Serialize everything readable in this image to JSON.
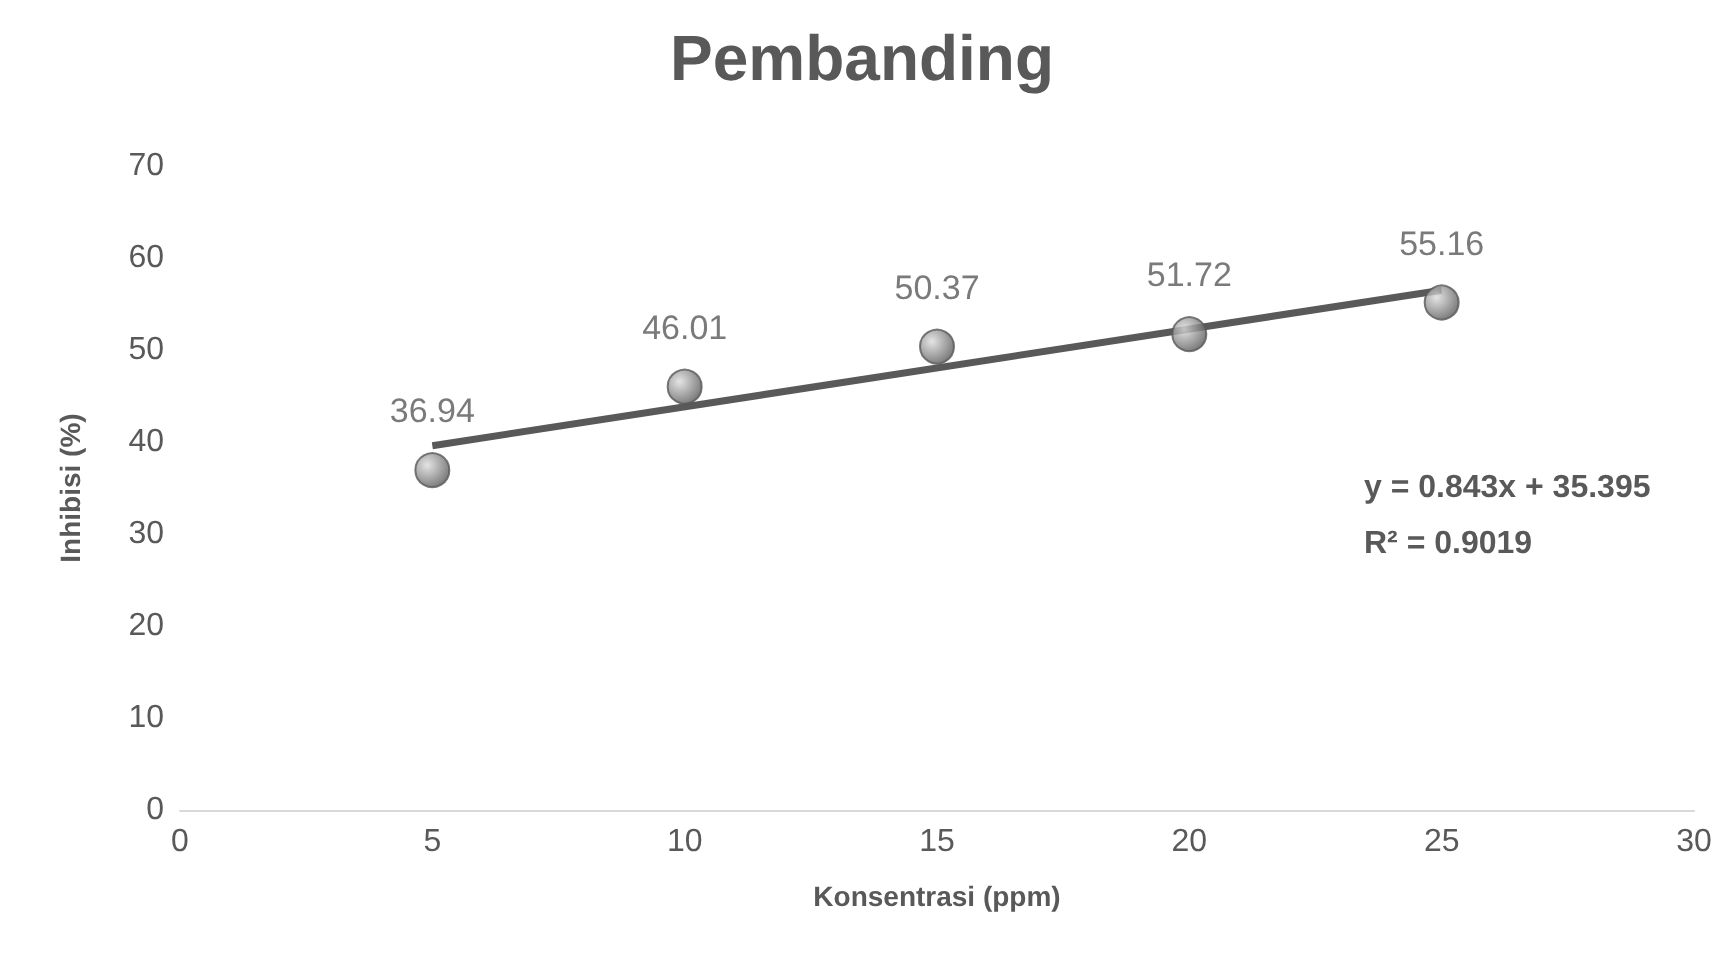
{
  "chart_data": {
    "type": "scatter",
    "title": "Pembanding",
    "xlabel": "Konsentrasi (ppm)",
    "ylabel": "Inhibisi (%)",
    "x": [
      5,
      10,
      15,
      20,
      25
    ],
    "series": [
      {
        "color": "#595959",
        "values": [
          36.94,
          46.01,
          50.37,
          51.72,
          55.16
        ],
        "value_labels": [
          "36.94",
          "46.01",
          "50.37",
          "51.72",
          "55.16"
        ]
      },
      {
        "type": "line",
        "color": "#595959",
        "marker": "none",
        "x": [
          5,
          25
        ],
        "values": [
          39.6,
          56.5
        ]
      }
    ],
    "xlim": [
      0,
      30
    ],
    "xticks": [
      0,
      5,
      10,
      15,
      20,
      25,
      30
    ],
    "ylim": [
      0,
      70
    ],
    "yticks": [
      0,
      10,
      20,
      30,
      40,
      50,
      60,
      70
    ],
    "grid": false,
    "marker": "circle",
    "annotations": [
      "y = 0.843x + 35.395",
      "R² = 0.9019"
    ]
  }
}
